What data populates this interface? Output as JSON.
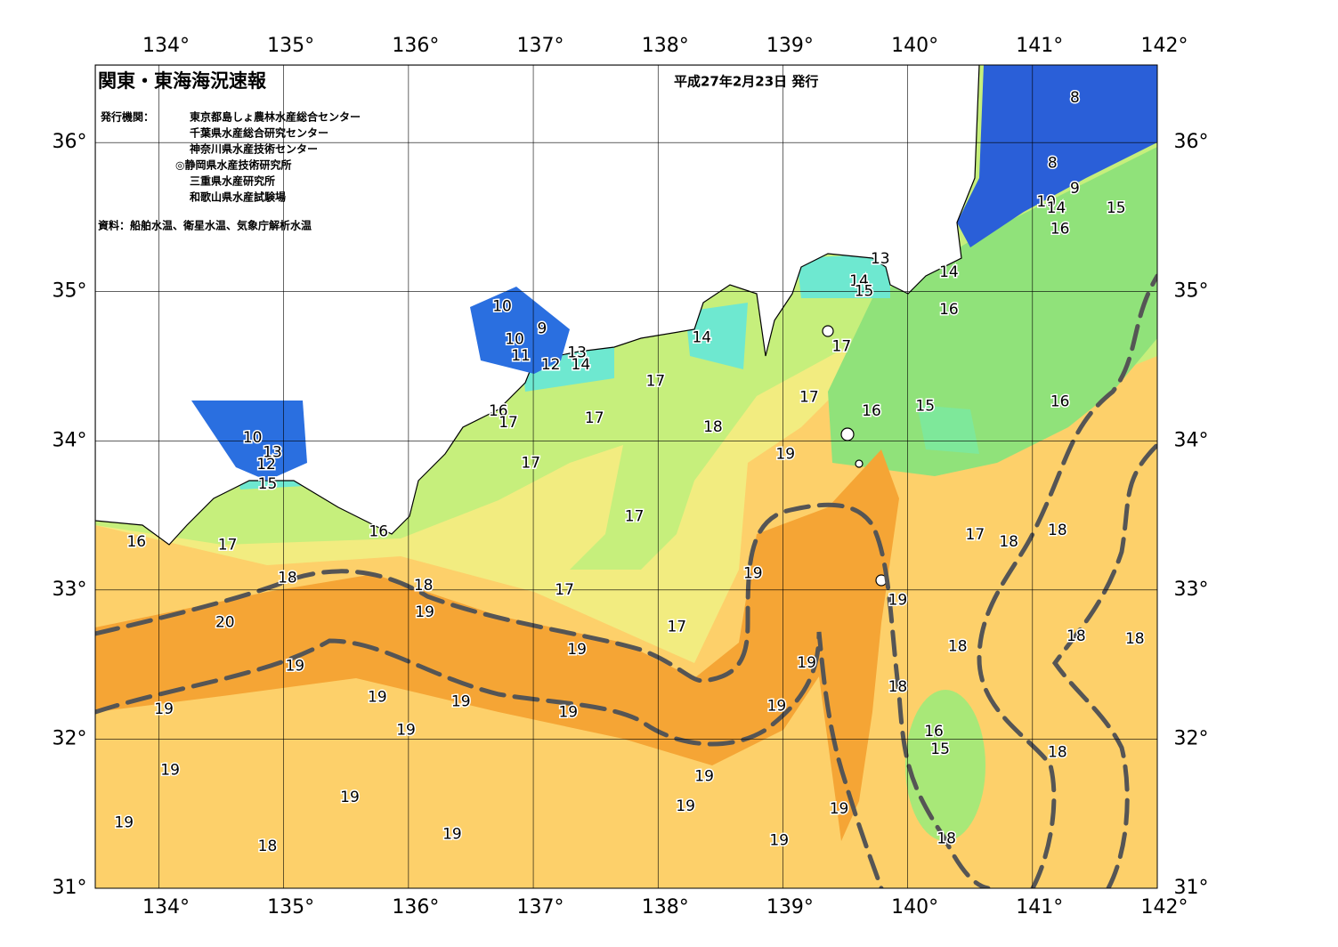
{
  "header": {
    "title": "関東・東海海況速報",
    "date": "平成27年2月23日 発行",
    "issuer_label": "発行機関：",
    "issuers": [
      "東京都島しょ農林水産総合センター",
      "千葉県水産総合研究センター",
      "神奈川県水産技術センター",
      "◎静岡県水産技術研究所",
      "三重県水産研究所",
      "和歌山県水産試験場"
    ],
    "source": "資料：船舶水温、衛星水温、気象庁解析水温"
  },
  "map": {
    "lon_range": [
      133.49,
      142
    ],
    "lat_range": [
      31,
      36.52
    ],
    "lon_ticks": [
      {
        "value": 134,
        "label": "134°"
      },
      {
        "value": 135,
        "label": "135°"
      },
      {
        "value": 136,
        "label": "136°"
      },
      {
        "value": 137,
        "label": "137°"
      },
      {
        "value": 138,
        "label": "138°"
      },
      {
        "value": 139,
        "label": "139°"
      },
      {
        "value": 140,
        "label": "140°"
      },
      {
        "value": 141,
        "label": "141°"
      },
      {
        "value": 142,
        "label": "142°"
      }
    ],
    "lat_ticks": [
      {
        "value": 31,
        "label": "31°"
      },
      {
        "value": 32,
        "label": "32°"
      },
      {
        "value": 33,
        "label": "33°"
      },
      {
        "value": 34,
        "label": "34°"
      },
      {
        "value": 35,
        "label": "35°"
      },
      {
        "value": 36,
        "label": "36°"
      }
    ],
    "contour_labels": [
      {
        "value": 8,
        "lon": 141.34,
        "lat": 36.3
      },
      {
        "value": 8,
        "lon": 141.16,
        "lat": 35.86
      },
      {
        "value": 9,
        "lon": 141.34,
        "lat": 35.69
      },
      {
        "value": 10,
        "lon": 141.11,
        "lat": 35.6
      },
      {
        "value": 14,
        "lon": 141.19,
        "lat": 35.56
      },
      {
        "value": 15,
        "lon": 141.67,
        "lat": 35.56
      },
      {
        "value": 16,
        "lon": 141.22,
        "lat": 35.42
      },
      {
        "value": 14,
        "lon": 140.33,
        "lat": 35.13
      },
      {
        "value": 16,
        "lon": 140.33,
        "lat": 34.88
      },
      {
        "value": 13,
        "lon": 139.78,
        "lat": 35.22
      },
      {
        "value": 14,
        "lon": 139.61,
        "lat": 35.07
      },
      {
        "value": 15,
        "lon": 139.65,
        "lat": 35.0
      },
      {
        "value": 17,
        "lon": 139.47,
        "lat": 34.63
      },
      {
        "value": 16,
        "lon": 139.71,
        "lat": 34.2
      },
      {
        "value": 15,
        "lon": 140.14,
        "lat": 34.23
      },
      {
        "value": 16,
        "lon": 141.22,
        "lat": 34.26
      },
      {
        "value": 17,
        "lon": 139.21,
        "lat": 34.29
      },
      {
        "value": 14,
        "lon": 138.35,
        "lat": 34.69
      },
      {
        "value": 10,
        "lon": 136.75,
        "lat": 34.9
      },
      {
        "value": 10,
        "lon": 136.85,
        "lat": 34.68
      },
      {
        "value": 9,
        "lon": 137.07,
        "lat": 34.75
      },
      {
        "value": 11,
        "lon": 136.9,
        "lat": 34.57
      },
      {
        "value": 12,
        "lon": 137.14,
        "lat": 34.51
      },
      {
        "value": 13,
        "lon": 137.35,
        "lat": 34.59
      },
      {
        "value": 14,
        "lon": 137.38,
        "lat": 34.51
      },
      {
        "value": 17,
        "lon": 137.98,
        "lat": 34.4
      },
      {
        "value": 17,
        "lon": 137.49,
        "lat": 34.15
      },
      {
        "value": 16,
        "lon": 136.72,
        "lat": 34.2
      },
      {
        "value": 17,
        "lon": 136.8,
        "lat": 34.12
      },
      {
        "value": 18,
        "lon": 138.44,
        "lat": 34.09
      },
      {
        "value": 19,
        "lon": 139.02,
        "lat": 33.91
      },
      {
        "value": 17,
        "lon": 136.98,
        "lat": 33.85
      },
      {
        "value": 10,
        "lon": 134.75,
        "lat": 34.02
      },
      {
        "value": 13,
        "lon": 134.91,
        "lat": 33.92
      },
      {
        "value": 12,
        "lon": 134.86,
        "lat": 33.84
      },
      {
        "value": 15,
        "lon": 134.87,
        "lat": 33.71
      },
      {
        "value": 16,
        "lon": 133.82,
        "lat": 33.32
      },
      {
        "value": 17,
        "lon": 134.55,
        "lat": 33.3
      },
      {
        "value": 16,
        "lon": 135.76,
        "lat": 33.39
      },
      {
        "value": 17,
        "lon": 137.81,
        "lat": 33.49
      },
      {
        "value": 17,
        "lon": 140.54,
        "lat": 33.37
      },
      {
        "value": 18,
        "lon": 140.81,
        "lat": 33.32
      },
      {
        "value": 18,
        "lon": 141.2,
        "lat": 33.4
      },
      {
        "value": 18,
        "lon": 135.03,
        "lat": 33.08
      },
      {
        "value": 18,
        "lon": 136.12,
        "lat": 33.03
      },
      {
        "value": 17,
        "lon": 137.25,
        "lat": 33.0
      },
      {
        "value": 19,
        "lon": 138.76,
        "lat": 33.11
      },
      {
        "value": 19,
        "lon": 136.13,
        "lat": 32.85
      },
      {
        "value": 19,
        "lon": 139.92,
        "lat": 32.93
      },
      {
        "value": 20,
        "lon": 134.53,
        "lat": 32.78
      },
      {
        "value": 17,
        "lon": 138.15,
        "lat": 32.75
      },
      {
        "value": 19,
        "lon": 137.35,
        "lat": 32.6
      },
      {
        "value": 18,
        "lon": 140.4,
        "lat": 32.62
      },
      {
        "value": 18,
        "lon": 141.35,
        "lat": 32.69
      },
      {
        "value": 18,
        "lon": 141.82,
        "lat": 32.67
      },
      {
        "value": 19,
        "lon": 135.09,
        "lat": 32.49
      },
      {
        "value": 19,
        "lon": 139.19,
        "lat": 32.51
      },
      {
        "value": 18,
        "lon": 139.92,
        "lat": 32.35
      },
      {
        "value": 19,
        "lon": 135.75,
        "lat": 32.28
      },
      {
        "value": 19,
        "lon": 136.42,
        "lat": 32.25
      },
      {
        "value": 19,
        "lon": 138.95,
        "lat": 32.22
      },
      {
        "value": 19,
        "lon": 134.04,
        "lat": 32.2
      },
      {
        "value": 19,
        "lon": 137.28,
        "lat": 32.18
      },
      {
        "value": 19,
        "lon": 135.98,
        "lat": 32.06
      },
      {
        "value": 16,
        "lon": 140.21,
        "lat": 32.05
      },
      {
        "value": 15,
        "lon": 140.26,
        "lat": 31.93
      },
      {
        "value": 18,
        "lon": 141.2,
        "lat": 31.91
      },
      {
        "value": 19,
        "lon": 134.09,
        "lat": 31.79
      },
      {
        "value": 19,
        "lon": 138.37,
        "lat": 31.75
      },
      {
        "value": 19,
        "lon": 135.53,
        "lat": 31.61
      },
      {
        "value": 19,
        "lon": 138.22,
        "lat": 31.55
      },
      {
        "value": 19,
        "lon": 139.45,
        "lat": 31.53
      },
      {
        "value": 19,
        "lon": 133.72,
        "lat": 31.44
      },
      {
        "value": 19,
        "lon": 136.35,
        "lat": 31.36
      },
      {
        "value": 18,
        "lon": 134.87,
        "lat": 31.28
      },
      {
        "value": 19,
        "lon": 138.97,
        "lat": 31.32
      },
      {
        "value": 18,
        "lon": 140.31,
        "lat": 31.33
      }
    ]
  }
}
